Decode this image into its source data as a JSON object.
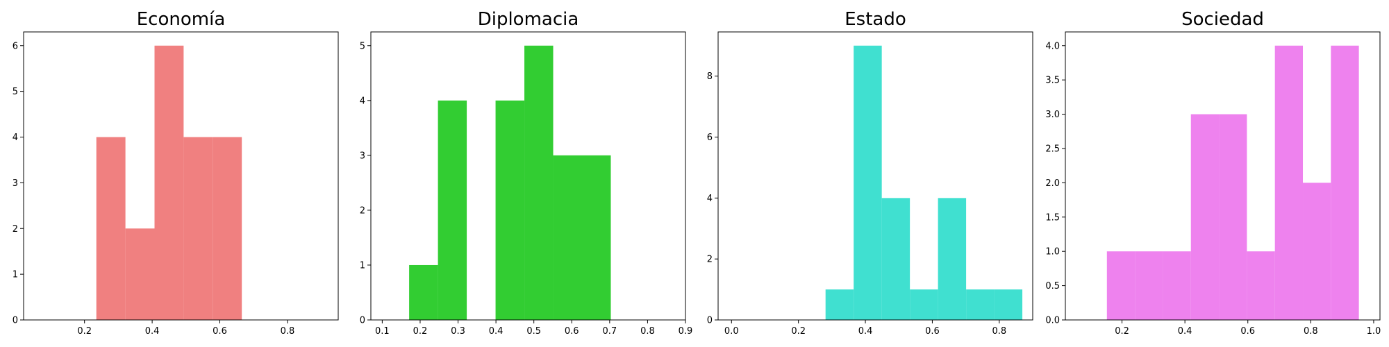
{
  "chart_data": [
    {
      "type": "histogram",
      "title": "Economía",
      "color": "#f08080",
      "xlim": [
        0.02,
        0.95
      ],
      "ylim": [
        0,
        6.3
      ],
      "xticks": [
        0.2,
        0.4,
        0.6,
        0.8
      ],
      "xtick_labels": [
        "0.2",
        "0.4",
        "0.6",
        "0.8"
      ],
      "yticks": [
        0,
        1,
        2,
        3,
        4,
        5,
        6
      ],
      "ytick_labels": [
        "0",
        "1",
        "2",
        "3",
        "4",
        "5",
        "6"
      ],
      "bins": [
        {
          "x0": 0.235,
          "x1": 0.321,
          "count": 4
        },
        {
          "x0": 0.321,
          "x1": 0.407,
          "count": 2
        },
        {
          "x0": 0.407,
          "x1": 0.493,
          "count": 6
        },
        {
          "x0": 0.493,
          "x1": 0.579,
          "count": 4
        },
        {
          "x0": 0.579,
          "x1": 0.665,
          "count": 4
        }
      ]
    },
    {
      "type": "histogram",
      "title": "Diplomacia",
      "color": "#32cd32",
      "xlim": [
        0.07,
        0.9
      ],
      "ylim": [
        0,
        5.25
      ],
      "xticks": [
        0.1,
        0.2,
        0.3,
        0.4,
        0.5,
        0.6,
        0.7,
        0.8,
        0.9
      ],
      "xtick_labels": [
        "0.1",
        "0.2",
        "0.3",
        "0.4",
        "0.5",
        "0.6",
        "0.7",
        "0.8",
        "0.9"
      ],
      "yticks": [
        0,
        1,
        2,
        3,
        4,
        5
      ],
      "ytick_labels": [
        "0",
        "1",
        "2",
        "3",
        "4",
        "5"
      ],
      "bins": [
        {
          "x0": 0.171,
          "x1": 0.247,
          "count": 1
        },
        {
          "x0": 0.247,
          "x1": 0.323,
          "count": 4
        },
        {
          "x0": 0.323,
          "x1": 0.399,
          "count": 0
        },
        {
          "x0": 0.399,
          "x1": 0.475,
          "count": 4
        },
        {
          "x0": 0.475,
          "x1": 0.551,
          "count": 5
        },
        {
          "x0": 0.551,
          "x1": 0.627,
          "count": 3
        },
        {
          "x0": 0.627,
          "x1": 0.703,
          "count": 3
        }
      ]
    },
    {
      "type": "histogram",
      "title": "Estado",
      "color": "#40e0d0",
      "xlim": [
        -0.04,
        0.9
      ],
      "ylim": [
        0,
        9.45
      ],
      "xticks": [
        0.0,
        0.2,
        0.4,
        0.6,
        0.8
      ],
      "xtick_labels": [
        "0.0",
        "0.2",
        "0.4",
        "0.6",
        "0.8"
      ],
      "yticks": [
        0,
        2,
        4,
        6,
        8
      ],
      "ytick_labels": [
        "0",
        "2",
        "4",
        "6",
        "8"
      ],
      "bins": [
        {
          "x0": 0.281,
          "x1": 0.365,
          "count": 1
        },
        {
          "x0": 0.365,
          "x1": 0.449,
          "count": 9
        },
        {
          "x0": 0.449,
          "x1": 0.533,
          "count": 4
        },
        {
          "x0": 0.533,
          "x1": 0.617,
          "count": 1
        },
        {
          "x0": 0.617,
          "x1": 0.701,
          "count": 4
        },
        {
          "x0": 0.701,
          "x1": 0.785,
          "count": 1
        },
        {
          "x0": 0.785,
          "x1": 0.869,
          "count": 1
        }
      ]
    },
    {
      "type": "histogram",
      "title": "Sociedad",
      "color": "#ee82ee",
      "xlim": [
        0.02,
        1.02
      ],
      "ylim": [
        0,
        4.2
      ],
      "xticks": [
        0.2,
        0.4,
        0.6,
        0.8,
        1.0
      ],
      "xtick_labels": [
        "0.2",
        "0.4",
        "0.6",
        "0.8",
        "1.0"
      ],
      "yticks": [
        0,
        0.5,
        1,
        1.5,
        2,
        2.5,
        3,
        3.5,
        4
      ],
      "ytick_labels": [
        "0.0",
        "0.5",
        "1.0",
        "1.5",
        "2.0",
        "2.5",
        "3.0",
        "3.5",
        "4.0"
      ],
      "bins": [
        {
          "x0": 0.152,
          "x1": 0.241,
          "count": 1
        },
        {
          "x0": 0.241,
          "x1": 0.33,
          "count": 1
        },
        {
          "x0": 0.33,
          "x1": 0.419,
          "count": 1
        },
        {
          "x0": 0.419,
          "x1": 0.508,
          "count": 3
        },
        {
          "x0": 0.508,
          "x1": 0.597,
          "count": 3
        },
        {
          "x0": 0.597,
          "x1": 0.686,
          "count": 1
        },
        {
          "x0": 0.686,
          "x1": 0.775,
          "count": 4
        },
        {
          "x0": 0.775,
          "x1": 0.864,
          "count": 2
        },
        {
          "x0": 0.864,
          "x1": 0.953,
          "count": 4
        }
      ]
    }
  ]
}
